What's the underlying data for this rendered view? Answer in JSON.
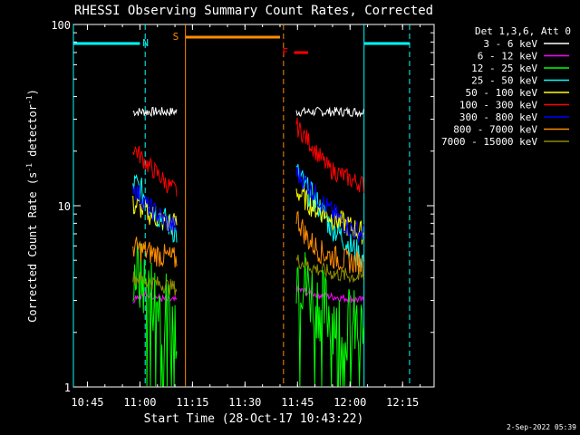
{
  "chart_data": {
    "type": "line",
    "title": "RHESSI Observing Summary Count Rates, Corrected",
    "xlabel": "Start Time (28-Oct-17 10:43:22)",
    "ylabel": "Corrected Count Rate (s",
    "ylabel_sup1": "-1",
    "ylabel_mid": " detector",
    "ylabel_sup2": "-1",
    "ylabel_end": ")",
    "footer": "2-Sep-2022 05:39",
    "y_scale": "log",
    "xlim": [
      "10:41:00",
      "12:24:00"
    ],
    "ylim": [
      1,
      100
    ],
    "x_ticks": [
      {
        "label": "10:45",
        "t": "10:45"
      },
      {
        "label": "11:00",
        "t": "11:00"
      },
      {
        "label": "11:15",
        "t": "11:15"
      },
      {
        "label": "11:30",
        "t": "11:30"
      },
      {
        "label": "11:45",
        "t": "11:45"
      },
      {
        "label": "12:00",
        "t": "12:00"
      },
      {
        "label": "12:15",
        "t": "12:15"
      }
    ],
    "y_ticks": [
      {
        "label": "100",
        "v": 100
      },
      {
        "label": "10",
        "v": 10
      },
      {
        "label": "1",
        "v": 1
      }
    ],
    "legend_title": "Det 1,3,6, Att 0",
    "legend_placement": "right",
    "series": [
      {
        "name": "3 - 6 keV",
        "color": "#ffffff",
        "segments": [
          {
            "times": [
              "10:58:00",
              "10:59:00",
              "11:02:00",
              "11:05:00",
              "11:08:00",
              "11:10:30"
            ],
            "values": [
              33,
              33,
              33,
              33,
              33,
              33
            ]
          },
          {
            "times": [
              "11:44:40",
              "11:45:00",
              "11:50:00",
              "11:55:00",
              "12:00:00",
              "12:04:00"
            ],
            "values": [
              33,
              33,
              33,
              33,
              33,
              33
            ]
          }
        ]
      },
      {
        "name": "6 - 12 keV",
        "color": "#ff00ff",
        "segments": [
          {
            "times": [
              "10:58:00",
              "10:59:00",
              "11:03:00",
              "11:08:00",
              "11:10:30"
            ],
            "values": [
              3,
              3.2,
              3.2,
              3,
              3
            ]
          },
          {
            "times": [
              "11:44:40",
              "11:46:00",
              "11:52:00",
              "11:58:00",
              "12:04:00"
            ],
            "values": [
              3.5,
              3.4,
              3.2,
              3.1,
              3
            ]
          }
        ]
      },
      {
        "name": "12 - 25 keV",
        "color": "#00ff00",
        "segments": [
          {
            "times": [
              "10:58:00",
              "10:59:00",
              "11:02:00",
              "11:05:00",
              "11:08:00",
              "11:10:30"
            ],
            "values": [
              4.5,
              4.2,
              3.5,
              3,
              2.6,
              2.3
            ]
          },
          {
            "times": [
              "11:44:40",
              "11:45:00",
              "11:48:00",
              "11:52:00",
              "11:56:00",
              "12:00:00",
              "12:04:00"
            ],
            "values": [
              4.5,
              4.5,
              3.5,
              2.8,
              2.4,
              2.2,
              2
            ]
          }
        ]
      },
      {
        "name": "25 - 50 keV",
        "color": "#00ffff",
        "segments": [
          {
            "times": [
              "10:58:00",
              "10:59:00",
              "11:02:00",
              "11:05:00",
              "11:08:00",
              "11:10:30"
            ],
            "values": [
              13,
              13,
              11,
              9,
              8,
              7
            ]
          },
          {
            "times": [
              "11:44:40",
              "11:45:00",
              "11:48:00",
              "11:51:00",
              "11:54:00",
              "11:57:00",
              "12:00:00",
              "12:04:00"
            ],
            "values": [
              15,
              15,
              12,
              10,
              8,
              7,
              6,
              5
            ]
          }
        ]
      },
      {
        "name": "50 - 100 keV",
        "color": "#ffff00",
        "segments": [
          {
            "times": [
              "10:58:00",
              "10:59:00",
              "11:03:00",
              "11:08:00",
              "11:10:30"
            ],
            "values": [
              10,
              10,
              9,
              8,
              8
            ]
          },
          {
            "times": [
              "11:44:40",
              "11:45:00",
              "11:49:00",
              "11:53:00",
              "11:58:00",
              "12:04:00"
            ],
            "values": [
              12,
              12,
              10,
              9,
              8,
              7
            ]
          }
        ]
      },
      {
        "name": "100 - 300 keV",
        "color": "#ff0000",
        "segments": [
          {
            "times": [
              "10:58:00",
              "10:59:00",
              "11:02:00",
              "11:05:00",
              "11:08:00",
              "11:10:30"
            ],
            "values": [
              21,
              20,
              17,
              15,
              13,
              12
            ]
          },
          {
            "times": [
              "11:44:40",
              "11:45:00",
              "11:48:00",
              "11:51:00",
              "11:54:00",
              "11:57:00",
              "12:00:00",
              "12:04:00"
            ],
            "values": [
              28,
              27,
              23,
              19,
              16,
              15,
              14,
              13
            ]
          }
        ]
      },
      {
        "name": "300 - 800 keV",
        "color": "#0000ff",
        "segments": [
          {
            "times": [
              "10:58:00",
              "10:59:00",
              "11:02:00",
              "11:05:00",
              "11:08:00",
              "11:10:30"
            ],
            "values": [
              13,
              12,
              10,
              9,
              8,
              7.5
            ]
          },
          {
            "times": [
              "11:44:40",
              "11:45:00",
              "11:48:00",
              "11:51:00",
              "11:54:00",
              "11:57:00",
              "12:00:00",
              "12:04:00"
            ],
            "values": [
              15,
              15,
              13,
              11,
              9.5,
              8.5,
              7.5,
              7
            ]
          }
        ]
      },
      {
        "name": "800 - 7000 keV",
        "color": "#ff8c00",
        "segments": [
          {
            "times": [
              "10:58:00",
              "10:59:00",
              "11:03:00",
              "11:08:00",
              "11:10:30"
            ],
            "values": [
              6,
              5.8,
              5.5,
              5.2,
              5
            ]
          },
          {
            "times": [
              "11:44:40",
              "11:45:00",
              "11:48:00",
              "11:52:00",
              "11:58:00",
              "12:04:00"
            ],
            "values": [
              9,
              8.5,
              6.5,
              5.5,
              5,
              4.8
            ]
          }
        ]
      },
      {
        "name": "7000 - 15000 keV",
        "color": "#8b8b00",
        "segments": [
          {
            "times": [
              "10:58:00",
              "10:59:00",
              "11:03:00",
              "11:08:00",
              "11:10:30"
            ],
            "values": [
              4,
              4,
              3.8,
              3.6,
              3.5
            ]
          },
          {
            "times": [
              "11:44:40",
              "11:45:00",
              "11:50:00",
              "11:56:00",
              "12:04:00"
            ],
            "values": [
              5,
              5,
              4.5,
              4.2,
              4
            ]
          }
        ]
      }
    ],
    "annotations": {
      "night": {
        "label": "N",
        "color": "#00ffff",
        "bars": [
          [
            "10:41:00",
            "11:00:00"
          ],
          [
            "12:04:00",
            "12:17:00"
          ]
        ],
        "solid_lines": [
          "10:41:00",
          "12:04:00"
        ],
        "dashed_lines": [
          "11:01:30",
          "12:17:00"
        ]
      },
      "saa": {
        "label": "S",
        "color": "#ff8c00",
        "bars": [
          [
            "11:13:00",
            "11:40:00"
          ]
        ],
        "solid_lines": [
          "11:13:00"
        ],
        "dashed_lines": [
          "11:41:00"
        ]
      },
      "flare": {
        "label": "F",
        "color": "#ff0000",
        "bars": [
          [
            "11:44:00",
            "11:48:00"
          ]
        ]
      }
    }
  }
}
